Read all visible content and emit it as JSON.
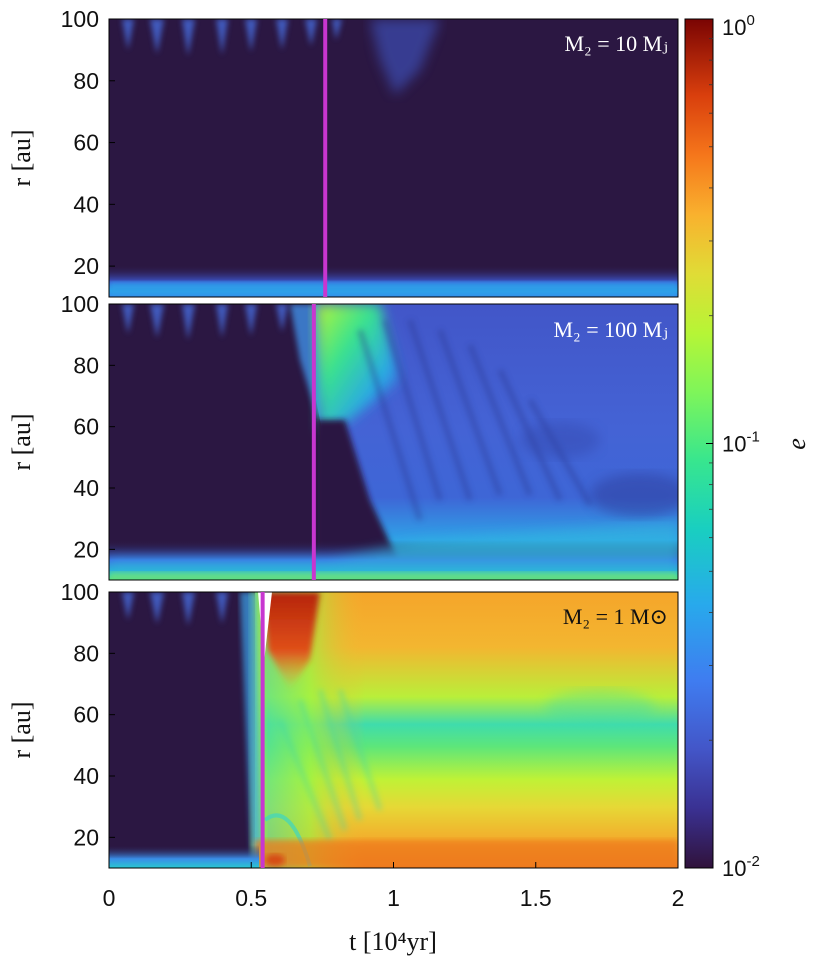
{
  "chart_data": {
    "type": "heatmap",
    "colorbar": {
      "label": "e",
      "scale": "log",
      "range": [
        0.01,
        1
      ],
      "ticks": [
        {
          "base": "10",
          "exp": "0",
          "value": 1
        },
        {
          "base": "10",
          "exp": "-1",
          "value": 0.1
        },
        {
          "base": "10",
          "exp": "-2",
          "value": 0.01
        }
      ]
    },
    "xlabel": "t [10⁴yr]",
    "xlim": [
      0,
      2
    ],
    "xticks": [
      "0",
      "0.5",
      "1",
      "1.5",
      "2"
    ],
    "panels": [
      {
        "label": "M₂ = 10 Mⱼ",
        "ylabel": "r [au]",
        "ylim": [
          10,
          100
        ],
        "yticks": [
          "100",
          "80",
          "60",
          "40",
          "20"
        ],
        "marker_t": 0.76,
        "inner_band_e": 0.04,
        "outer_scallops_e": 0.03
      },
      {
        "label": "M₂ = 100 Mⱼ",
        "ylabel": "r [au]",
        "ylim": [
          10,
          100
        ],
        "yticks": [
          "100",
          "80",
          "60",
          "40",
          "20"
        ],
        "marker_t": 0.72,
        "post_mean_e": 0.025,
        "plume_e": 0.08,
        "inner_band_e": 0.06
      },
      {
        "label": "M₂ = 1 M⊙",
        "ylabel": "r [au]",
        "ylim": [
          10,
          100
        ],
        "yticks": [
          "100",
          "80",
          "60",
          "40",
          "20"
        ],
        "marker_t": 0.54,
        "post_outer_e": 0.3,
        "post_mid_e": 0.08,
        "post_inner_e": 0.25
      }
    ],
    "colors": {
      "background_low": "#2b1742",
      "marker": "#c836d0"
    }
  }
}
